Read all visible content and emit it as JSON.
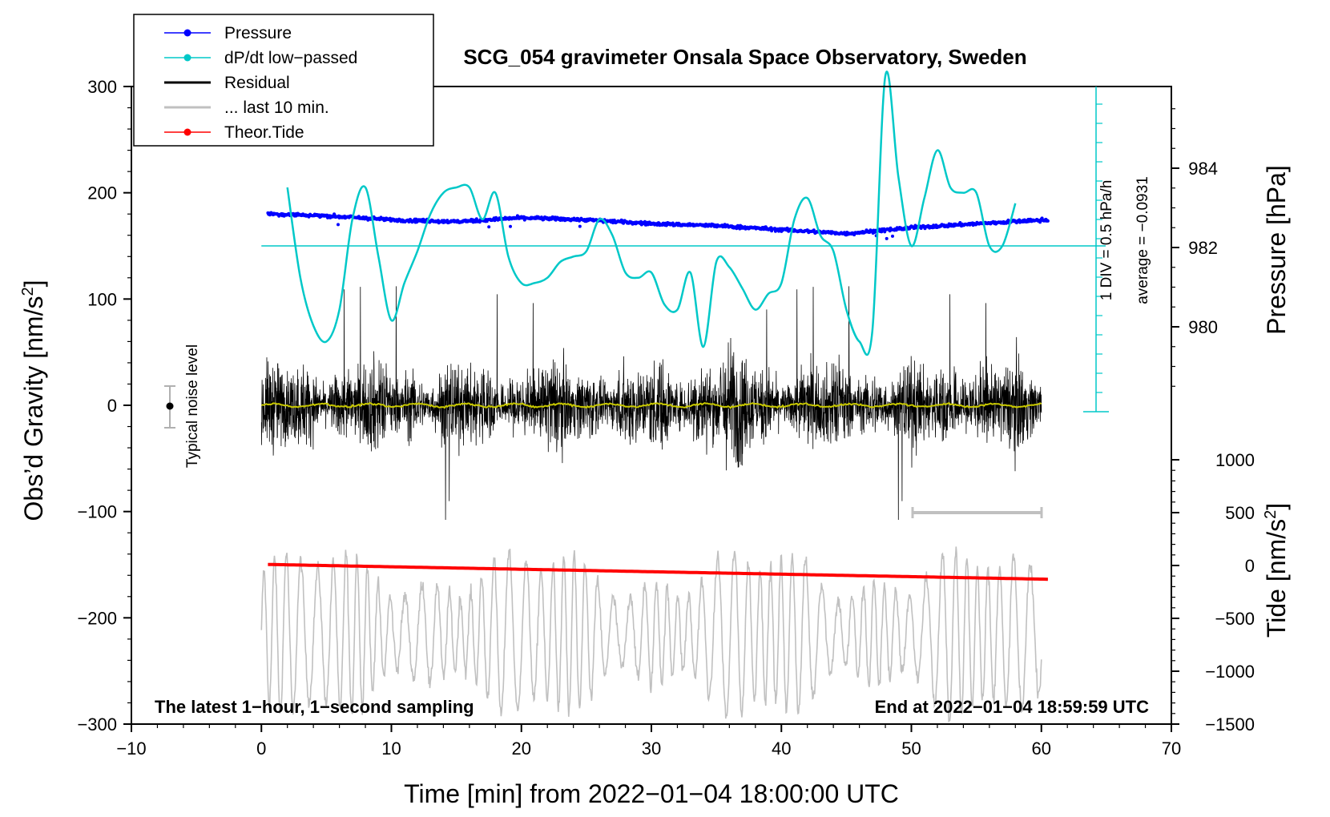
{
  "chart_data": {
    "type": "line",
    "title": "SCG_054 gravimeter Onsala Space Observatory, Sweden",
    "xlabel": "Time [min] from 2022−01−04 18:00:00 UTC",
    "ylabel_left_main": "Obs’d Gravity [nm/s",
    "ylabel_left_sup": "2",
    "ylabel_left_close": "]",
    "ylabel_right_pressure": "Pressure [hPa]",
    "ylabel_right_tide_main": "Tide [nm/s",
    "ylabel_right_tide_sup": "2",
    "ylabel_right_tide_close": "]",
    "xlim": [
      -10,
      70
    ],
    "ylim": [
      -300,
      300
    ],
    "pressure_axis_range": [
      978.0,
      986.0
    ],
    "tide_axis_range": [
      -1500,
      1000
    ],
    "x_ticks": [
      -10,
      0,
      10,
      20,
      30,
      40,
      50,
      60,
      70
    ],
    "x_tick_labels": [
      "−10",
      "0",
      "10",
      "20",
      "30",
      "40",
      "50",
      "60",
      "70"
    ],
    "y_ticks": [
      300,
      200,
      100,
      0,
      -100,
      -200,
      -300
    ],
    "y_tick_labels": [
      "300",
      "200",
      "100",
      "0",
      "−100",
      "−200",
      "−300"
    ],
    "pressure_ticks": [
      984,
      982,
      980
    ],
    "pressure_tick_labels": [
      "984",
      "982",
      "980"
    ],
    "tide_ticks": [
      1000,
      500,
      0,
      -500,
      -1000,
      -1500
    ],
    "tide_tick_labels": [
      "1000",
      "500",
      "0",
      "−500",
      "−1000",
      "−1500"
    ],
    "legend": [
      {
        "label": "Pressure",
        "color": "#0000ff",
        "marker": true
      },
      {
        "label": "dP/dt low−passed",
        "color": "#00c8c8",
        "marker": true
      },
      {
        "label": "Residual",
        "color": "#000000",
        "marker": false
      },
      {
        "label": "... last 10 min.",
        "color": "#c0c0c0",
        "marker": false
      },
      {
        "label": "Theor.Tide",
        "color": "#ff0000",
        "marker": true
      }
    ],
    "series": [
      {
        "name": "Pressure",
        "units": "hPa",
        "x_range": [
          0.5,
          60.5
        ],
        "points": [
          [
            0.5,
            982.85
          ],
          [
            5,
            982.8
          ],
          [
            10,
            982.7
          ],
          [
            15,
            982.65
          ],
          [
            20,
            982.75
          ],
          [
            25,
            982.7
          ],
          [
            30,
            982.6
          ],
          [
            35,
            982.55
          ],
          [
            40,
            982.45
          ],
          [
            45,
            982.35
          ],
          [
            50,
            982.5
          ],
          [
            55,
            982.6
          ],
          [
            60.5,
            982.7
          ]
        ]
      },
      {
        "name": "dP/dt low-passed",
        "units": "gravity-axis scale",
        "x": [
          2,
          3,
          4,
          5,
          6,
          7,
          8,
          9,
          10,
          11,
          12,
          13,
          14,
          15,
          16,
          17,
          18,
          19,
          20,
          21,
          22,
          23,
          24,
          25,
          26,
          27,
          28,
          29,
          30,
          31,
          32,
          33,
          34,
          35,
          36,
          37,
          38,
          39,
          40,
          41,
          42,
          43,
          44,
          45,
          46,
          47,
          48,
          49,
          50,
          51,
          52,
          53,
          54,
          55,
          56,
          57,
          58
        ],
        "y": [
          205,
          120,
          75,
          60,
          90,
          175,
          205,
          140,
          80,
          115,
          145,
          180,
          200,
          205,
          205,
          175,
          200,
          140,
          115,
          115,
          120,
          135,
          140,
          145,
          175,
          160,
          125,
          120,
          125,
          95,
          90,
          125,
          55,
          135,
          130,
          110,
          90,
          105,
          115,
          175,
          195,
          160,
          145,
          90,
          60,
          70,
          310,
          215,
          150,
          195,
          240,
          205,
          200,
          200,
          150,
          150,
          190
        ]
      },
      {
        "name": "Residual",
        "units": "nm/s2",
        "x_range": [
          0,
          60
        ],
        "envelope": "approximately ±60 nm/s2 with spikes to +115 and −115"
      },
      {
        "name": "Residual smoothed (yellow)",
        "units": "nm/s2",
        "x_range": [
          0,
          60
        ],
        "level": 0
      },
      {
        "name": "... last 10 min.",
        "units": "nm/s2",
        "x_range": [
          0,
          60
        ],
        "envelope": "oscillating between about −280 and −160 nm/s2"
      },
      {
        "name": "Theor.Tide",
        "units": "nm/s2",
        "x": [
          0.5,
          60.5
        ],
        "y": [
          10,
          -130
        ]
      }
    ],
    "dpdt_zero_level": 150,
    "dpdt_scale_labels": [
      "1 DIV = 0.5 hPa/h",
      "average = −0.0931"
    ],
    "noise_label": "Typical noise level",
    "noise_value": 0,
    "noise_range": [
      -20,
      20
    ],
    "last_10min_window": [
      50,
      60
    ],
    "annotation_left": "The latest 1−hour, 1−second sampling",
    "annotation_right": "End at 2022−01−04 18:59:59 UTC"
  },
  "colors": {
    "pressure": "#0000ff",
    "dpdt": "#00c8c8",
    "residual": "#000000",
    "residual_smooth": "#c8c800",
    "last10": "#c0c0c0",
    "tide": "#ff0000"
  }
}
